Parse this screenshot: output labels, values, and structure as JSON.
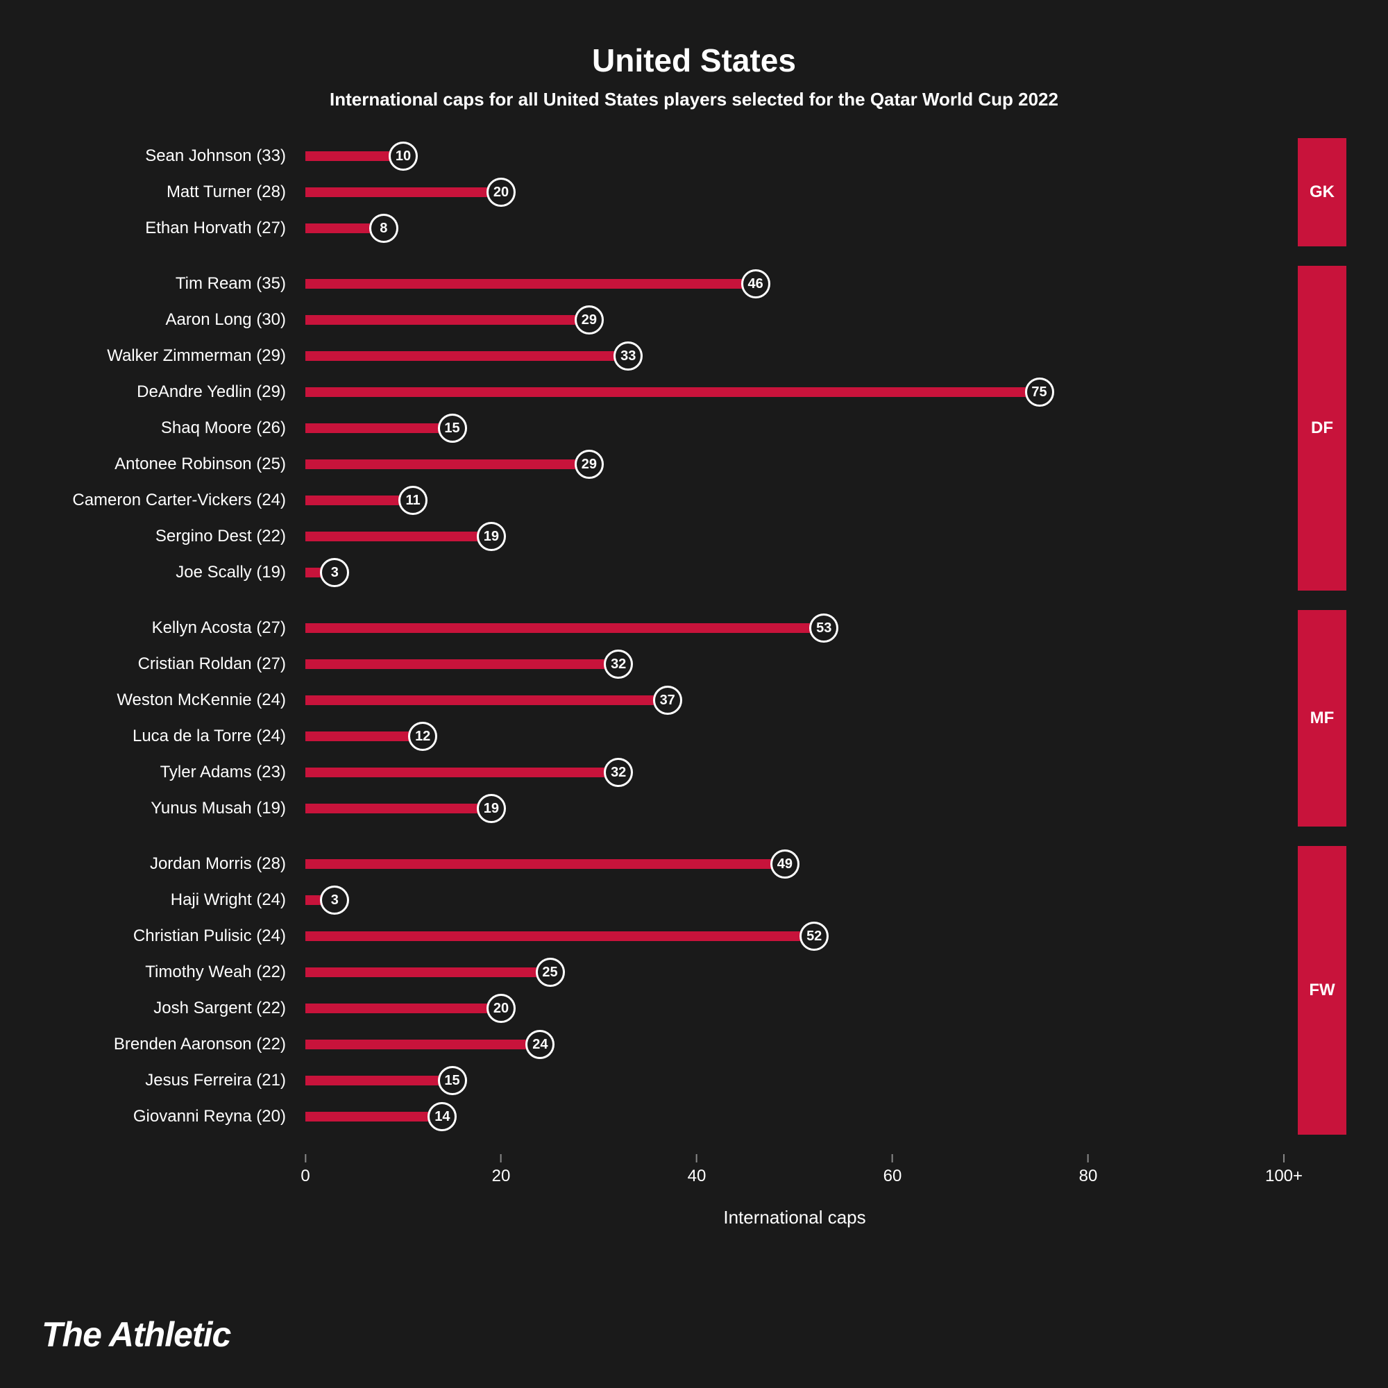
{
  "chart": {
    "title": "United States",
    "subtitle": "International caps for all United States players selected for the Qatar World Cup 2022",
    "title_fontsize": 46,
    "subtitle_fontsize": 26,
    "label_fontsize": 24,
    "marker_fontsize": 20,
    "pos_fontsize": 24,
    "tick_fontsize": 24,
    "axis_label_fontsize": 26,
    "bar_color": "#c8133b",
    "marker_bg": "#1a1a1a",
    "marker_text_color": "#ffffff",
    "background_color": "#1a1a1a",
    "text_color": "#ffffff",
    "tick_color": "#888888",
    "pos_block_color": "#c8133b",
    "x_axis_label": "International caps",
    "x_max": 100,
    "x_ticks": [
      {
        "pos": 0,
        "label": "0"
      },
      {
        "pos": 20,
        "label": "20"
      },
      {
        "pos": 40,
        "label": "40"
      },
      {
        "pos": 60,
        "label": "60"
      },
      {
        "pos": 80,
        "label": "80"
      },
      {
        "pos": 100,
        "label": "100+"
      }
    ],
    "groups": [
      {
        "position": "GK",
        "players": [
          {
            "name": "Sean Johnson",
            "age": 33,
            "caps": 10
          },
          {
            "name": "Matt Turner",
            "age": 28,
            "caps": 20
          },
          {
            "name": "Ethan Horvath",
            "age": 27,
            "caps": 8
          }
        ]
      },
      {
        "position": "DF",
        "players": [
          {
            "name": "Tim Ream",
            "age": 35,
            "caps": 46
          },
          {
            "name": "Aaron Long",
            "age": 30,
            "caps": 29
          },
          {
            "name": "Walker Zimmerman",
            "age": 29,
            "caps": 33
          },
          {
            "name": "DeAndre Yedlin",
            "age": 29,
            "caps": 75
          },
          {
            "name": "Shaq Moore",
            "age": 26,
            "caps": 15
          },
          {
            "name": "Antonee Robinson",
            "age": 25,
            "caps": 29
          },
          {
            "name": "Cameron Carter-Vickers",
            "age": 24,
            "caps": 11
          },
          {
            "name": "Sergino Dest",
            "age": 22,
            "caps": 19
          },
          {
            "name": "Joe Scally",
            "age": 19,
            "caps": 3
          }
        ]
      },
      {
        "position": "MF",
        "players": [
          {
            "name": "Kellyn Acosta",
            "age": 27,
            "caps": 53
          },
          {
            "name": "Cristian Roldan",
            "age": 27,
            "caps": 32
          },
          {
            "name": "Weston McKennie",
            "age": 24,
            "caps": 37
          },
          {
            "name": "Luca de la Torre",
            "age": 24,
            "caps": 12
          },
          {
            "name": "Tyler Adams",
            "age": 23,
            "caps": 32
          },
          {
            "name": "Yunus Musah",
            "age": 19,
            "caps": 19
          }
        ]
      },
      {
        "position": "FW",
        "players": [
          {
            "name": "Jordan Morris",
            "age": 28,
            "caps": 49
          },
          {
            "name": "Haji Wright",
            "age": 24,
            "caps": 3
          },
          {
            "name": "Christian Pulisic",
            "age": 24,
            "caps": 52
          },
          {
            "name": "Timothy Weah",
            "age": 22,
            "caps": 25
          },
          {
            "name": "Josh Sargent",
            "age": 22,
            "caps": 20
          },
          {
            "name": "Brenden Aaronson",
            "age": 22,
            "caps": 24
          },
          {
            "name": "Jesus Ferreira",
            "age": 21,
            "caps": 15
          },
          {
            "name": "Giovanni Reyna",
            "age": 20,
            "caps": 14
          }
        ]
      }
    ]
  },
  "footer": {
    "logo_text": "The Athletic",
    "logo_fontsize": 50
  }
}
